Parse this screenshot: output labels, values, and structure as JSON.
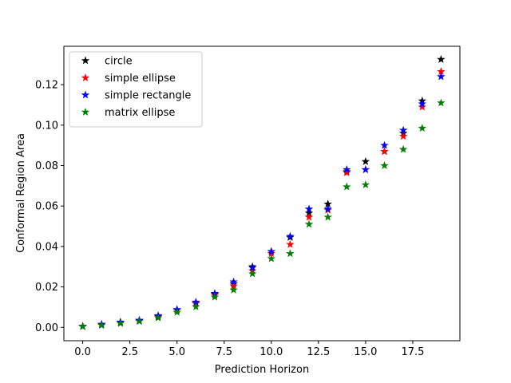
{
  "chart_data": {
    "type": "scatter",
    "title": "",
    "xlabel": "Prediction Horizon",
    "ylabel": "Conformal Region Area",
    "xlim": [
      -1.0,
      20.0
    ],
    "ylim": [
      -0.0066,
      0.139
    ],
    "xticks": [
      0.0,
      2.5,
      5.0,
      7.5,
      10.0,
      12.5,
      15.0,
      17.5
    ],
    "xtick_labels": [
      "0.0",
      "2.5",
      "5.0",
      "7.5",
      "10.0",
      "12.5",
      "15.0",
      "17.5"
    ],
    "yticks": [
      0.0,
      0.02,
      0.04,
      0.06,
      0.08,
      0.1,
      0.12
    ],
    "ytick_labels": [
      "0.00",
      "0.02",
      "0.04",
      "0.06",
      "0.08",
      "0.10",
      "0.12"
    ],
    "grid": false,
    "legend_position": "top-left",
    "marker": "star",
    "x": [
      0,
      1,
      2,
      3,
      4,
      5,
      6,
      7,
      8,
      9,
      10,
      11,
      12,
      13,
      14,
      15,
      16,
      17,
      18,
      19
    ],
    "series": [
      {
        "name": "circle",
        "color": "#000000",
        "values": [
          0.0005,
          0.0015,
          0.0026,
          0.0035,
          0.0055,
          0.0087,
          0.012,
          0.0165,
          0.0215,
          0.03,
          0.0375,
          0.0445,
          0.0565,
          0.061,
          0.077,
          0.082,
          0.087,
          0.096,
          0.112,
          0.1325
        ]
      },
      {
        "name": "simple ellipse",
        "color": "#ff0000",
        "values": [
          0.0005,
          0.0015,
          0.0025,
          0.0033,
          0.0052,
          0.0085,
          0.0118,
          0.016,
          0.0205,
          0.028,
          0.0365,
          0.041,
          0.0545,
          0.058,
          0.0765,
          0.078,
          0.087,
          0.0945,
          0.109,
          0.1265
        ]
      },
      {
        "name": "simple rectangle",
        "color": "#0000ff",
        "values": [
          0.0005,
          0.0015,
          0.0026,
          0.0035,
          0.0058,
          0.0088,
          0.0125,
          0.0168,
          0.0225,
          0.0295,
          0.0375,
          0.045,
          0.0585,
          0.0585,
          0.078,
          0.078,
          0.09,
          0.0975,
          0.1105,
          0.124
        ]
      },
      {
        "name": "matrix ellipse",
        "color": "#008000",
        "values": [
          0.0004,
          0.001,
          0.002,
          0.003,
          0.0047,
          0.0075,
          0.0102,
          0.015,
          0.0185,
          0.0265,
          0.034,
          0.0365,
          0.051,
          0.0545,
          0.0695,
          0.0705,
          0.08,
          0.088,
          0.0985,
          0.111
        ]
      }
    ]
  }
}
